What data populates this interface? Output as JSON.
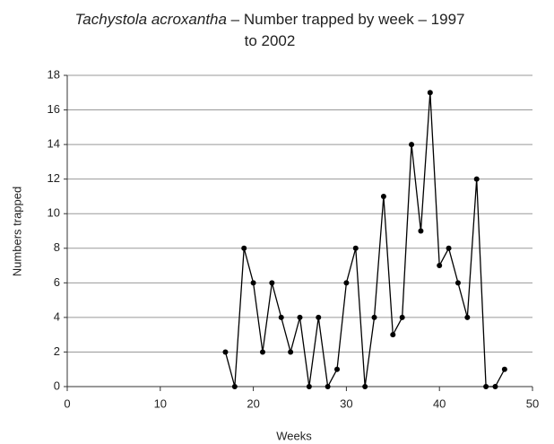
{
  "chart_data": {
    "type": "line",
    "title_parts": [
      "Tachystola acroxantha",
      " – Number trapped by week – 1997 to 2002"
    ],
    "xlabel": "Weeks",
    "ylabel": "Numbers trapped",
    "x": [
      17,
      18,
      19,
      20,
      21,
      22,
      23,
      24,
      25,
      26,
      27,
      28,
      29,
      30,
      31,
      32,
      33,
      34,
      35,
      36,
      37,
      38,
      39,
      40,
      41,
      42,
      43,
      44,
      45,
      46,
      47
    ],
    "series": [
      {
        "color": "#000000",
        "values": [
          2,
          0,
          8,
          6,
          2,
          6,
          4,
          2,
          4,
          0,
          4,
          0,
          1,
          6,
          8,
          0,
          4,
          11,
          3,
          4,
          14,
          9,
          17,
          7,
          8,
          6,
          4,
          12,
          0,
          0,
          1
        ]
      }
    ],
    "xlim": [
      0,
      50
    ],
    "xticks": [
      0,
      10,
      20,
      30,
      40,
      50
    ],
    "ylim": [
      0,
      18
    ],
    "yticks": [
      0,
      2,
      4,
      6,
      8,
      10,
      12,
      14,
      16,
      18
    ],
    "grid": true
  }
}
